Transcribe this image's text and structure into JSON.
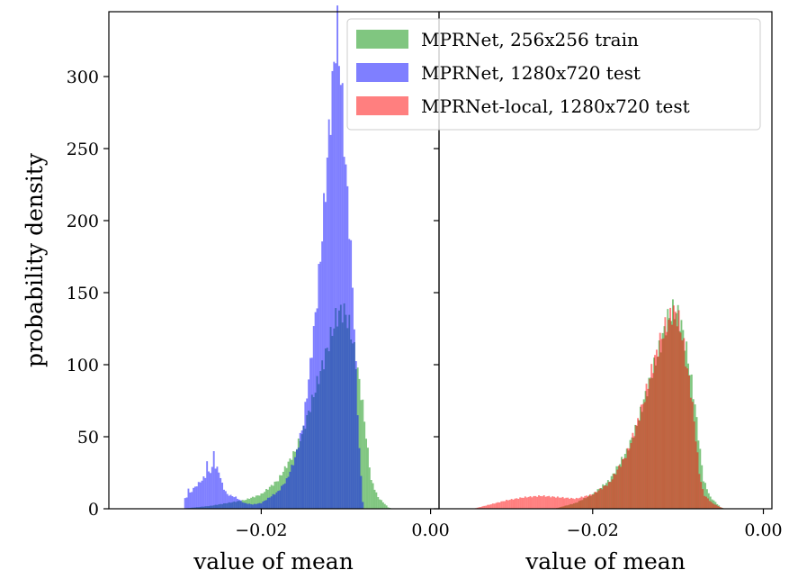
{
  "chart_data": [
    {
      "type": "histogram",
      "panel": "left",
      "xlabel": "value of mean",
      "ylabel": "probability density",
      "xlim": [
        -0.038,
        0.001
      ],
      "ylim": [
        0,
        345
      ],
      "xticks": [
        {
          "value": -0.02,
          "label": "−0.02"
        },
        {
          "value": 0.0,
          "label": "0.00"
        }
      ],
      "yticks": [
        {
          "value": 0,
          "label": "0"
        },
        {
          "value": 50,
          "label": "50"
        },
        {
          "value": 100,
          "label": "100"
        },
        {
          "value": 150,
          "label": "150"
        },
        {
          "value": 200,
          "label": "200"
        },
        {
          "value": 250,
          "label": "250"
        },
        {
          "value": 300,
          "label": "300"
        }
      ],
      "series": [
        {
          "name": "MPRNet, 256x256 train",
          "color": "#2ca02c",
          "opacity": 0.6,
          "profile": [
            [
              -0.0295,
              0
            ],
            [
              -0.026,
              2
            ],
            [
              -0.022,
              6
            ],
            [
              -0.02,
              10
            ],
            [
              -0.018,
              20
            ],
            [
              -0.016,
              40
            ],
            [
              -0.015,
              55
            ],
            [
              -0.014,
              75
            ],
            [
              -0.013,
              95
            ],
            [
              -0.012,
              115
            ],
            [
              -0.0112,
              132
            ],
            [
              -0.0105,
              138
            ],
            [
              -0.01,
              135
            ],
            [
              -0.0095,
              125
            ],
            [
              -0.009,
              110
            ],
            [
              -0.0085,
              92
            ],
            [
              -0.008,
              72
            ],
            [
              -0.0075,
              45
            ],
            [
              -0.007,
              20
            ],
            [
              -0.0062,
              8
            ],
            [
              -0.0055,
              4
            ],
            [
              -0.005,
              1
            ],
            [
              -0.0045,
              0
            ]
          ]
        },
        {
          "name": "MPRNet, 1280x720 test",
          "color": "#0000ff",
          "opacity": 0.5,
          "profile": [
            [
              -0.0291,
              0
            ],
            [
              -0.029,
              7
            ],
            [
              -0.0285,
              10
            ],
            [
              -0.028,
              14
            ],
            [
              -0.027,
              20
            ],
            [
              -0.0262,
              25
            ],
            [
              -0.0255,
              30
            ],
            [
              -0.025,
              26
            ],
            [
              -0.0245,
              15
            ],
            [
              -0.024,
              10
            ],
            [
              -0.023,
              8
            ],
            [
              -0.022,
              4
            ],
            [
              -0.021,
              3
            ],
            [
              -0.02,
              4
            ],
            [
              -0.019,
              8
            ],
            [
              -0.018,
              12
            ],
            [
              -0.017,
              20
            ],
            [
              -0.016,
              35
            ],
            [
              -0.015,
              60
            ],
            [
              -0.0142,
              100
            ],
            [
              -0.0135,
              140
            ],
            [
              -0.013,
              175
            ],
            [
              -0.0125,
              215
            ],
            [
              -0.012,
              260
            ],
            [
              -0.0115,
              300
            ],
            [
              -0.0112,
              325
            ],
            [
              -0.011,
              330
            ],
            [
              -0.0107,
              310
            ],
            [
              -0.0103,
              270
            ],
            [
              -0.01,
              235
            ],
            [
              -0.0095,
              190
            ],
            [
              -0.009,
              130
            ],
            [
              -0.0087,
              80
            ],
            [
              -0.0083,
              30
            ],
            [
              -0.008,
              5
            ],
            [
              -0.0078,
              0
            ]
          ],
          "spikes": [
            {
              "x": -0.0256,
              "y": 40
            },
            {
              "x": -0.0264,
              "y": 33
            },
            {
              "x": -0.0286,
              "y": 14
            }
          ]
        }
      ]
    },
    {
      "type": "histogram",
      "panel": "right",
      "xlabel": "value of mean",
      "ylabel": "",
      "xlim": [
        -0.038,
        0.001
      ],
      "ylim": [
        0,
        345
      ],
      "xticks": [
        {
          "value": -0.02,
          "label": "−0.02"
        },
        {
          "value": 0.0,
          "label": "0.00"
        }
      ],
      "series": [
        {
          "name": "MPRNet, 256x256 train",
          "color": "#2ca02c",
          "opacity": 0.6,
          "profile": [
            [
              -0.0245,
              0
            ],
            [
              -0.022,
              4
            ],
            [
              -0.02,
              10
            ],
            [
              -0.018,
              20
            ],
            [
              -0.016,
              40
            ],
            [
              -0.015,
              55
            ],
            [
              -0.014,
              75
            ],
            [
              -0.013,
              95
            ],
            [
              -0.012,
              115
            ],
            [
              -0.0112,
              132
            ],
            [
              -0.0105,
              138
            ],
            [
              -0.01,
              135
            ],
            [
              -0.0095,
              125
            ],
            [
              -0.009,
              110
            ],
            [
              -0.0085,
              92
            ],
            [
              -0.008,
              72
            ],
            [
              -0.0075,
              45
            ],
            [
              -0.007,
              20
            ],
            [
              -0.0062,
              8
            ],
            [
              -0.0055,
              4
            ],
            [
              -0.005,
              1
            ],
            [
              -0.0045,
              0
            ]
          ]
        },
        {
          "name": "MPRNet-local, 1280x720 test",
          "color": "#ff0000",
          "opacity": 0.5,
          "profile": [
            [
              -0.034,
              0
            ],
            [
              -0.032,
              3
            ],
            [
              -0.03,
              6
            ],
            [
              -0.028,
              8
            ],
            [
              -0.026,
              9
            ],
            [
              -0.024,
              8
            ],
            [
              -0.022,
              7
            ],
            [
              -0.02,
              10
            ],
            [
              -0.018,
              18
            ],
            [
              -0.016,
              38
            ],
            [
              -0.015,
              55
            ],
            [
              -0.014,
              75
            ],
            [
              -0.013,
              98
            ],
            [
              -0.012,
              118
            ],
            [
              -0.0112,
              130
            ],
            [
              -0.0106,
              137
            ],
            [
              -0.01,
              133
            ],
            [
              -0.0095,
              120
            ],
            [
              -0.009,
              100
            ],
            [
              -0.0085,
              82
            ],
            [
              -0.008,
              55
            ],
            [
              -0.0075,
              25
            ],
            [
              -0.007,
              10
            ],
            [
              -0.006,
              4
            ],
            [
              -0.005,
              1
            ],
            [
              -0.0045,
              0
            ]
          ]
        }
      ]
    }
  ],
  "legend": {
    "position": "top-right",
    "entries": [
      {
        "label": "MPRNet, 256x256 train",
        "color": "#2ca02c",
        "opacity": 0.6
      },
      {
        "label": "MPRNet, 1280x720 test",
        "color": "#0000ff",
        "opacity": 0.5
      },
      {
        "label": "MPRNet-local, 1280x720 test",
        "color": "#ff0000",
        "opacity": 0.5
      }
    ]
  }
}
